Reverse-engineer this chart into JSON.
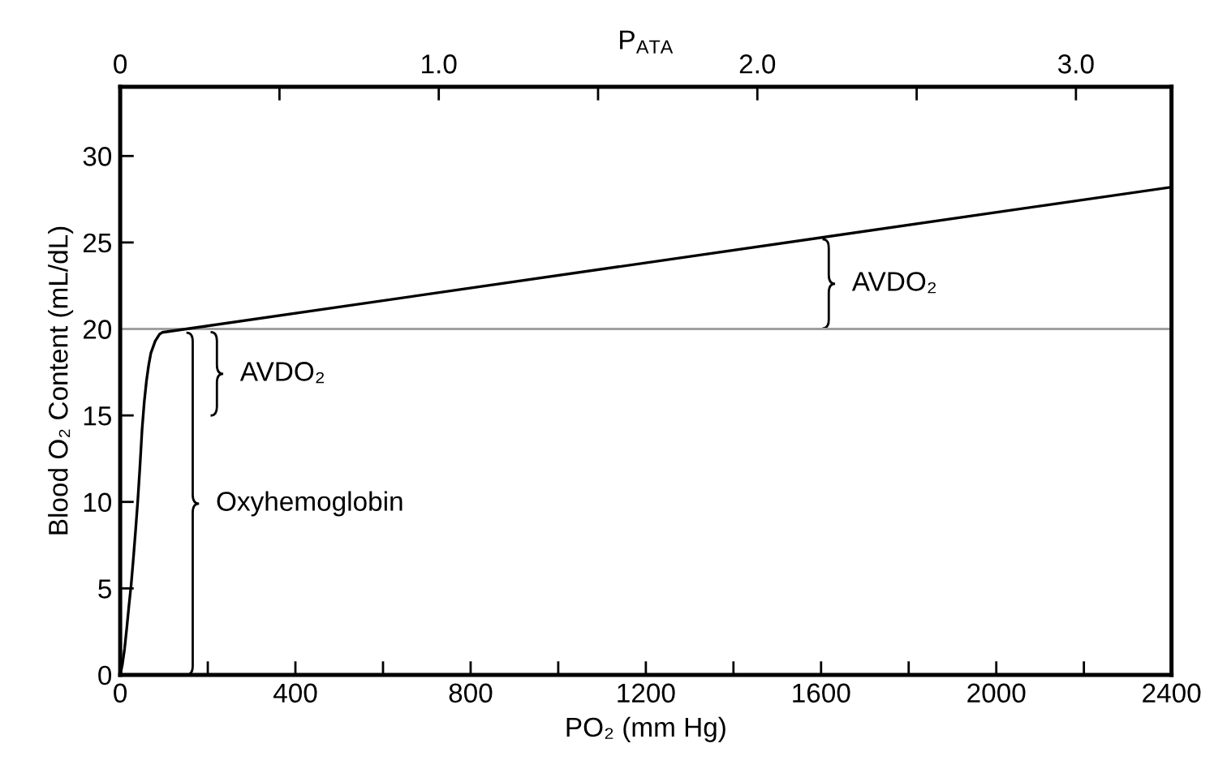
{
  "chart_data": {
    "type": "line",
    "xlabel": "PO₂ (mm Hg)",
    "ylabel": "Blood O₂ Content (mL/dL)",
    "x2label": "P$_{ATA}$",
    "series": [
      {
        "color": "#000000",
        "x": [
          0,
          5,
          10,
          15,
          20,
          25,
          30,
          35,
          40,
          45,
          50,
          55,
          60,
          65,
          70,
          80,
          90,
          96,
          2400
        ],
        "values": [
          0,
          0.6,
          1.5,
          2.7,
          4.0,
          5.2,
          6.7,
          8.3,
          10.0,
          12.0,
          14.2,
          15.8,
          17.0,
          17.9,
          18.6,
          19.3,
          19.7,
          19.8,
          28.2
        ]
      }
    ],
    "xlim": [
      0,
      2400
    ],
    "xticks": [
      0,
      {
        "value": 200,
        "label": null
      },
      400,
      {
        "value": 600,
        "label": null
      },
      800,
      {
        "value": 1000,
        "label": null
      },
      1200,
      {
        "value": 1400,
        "label": null
      },
      1600,
      {
        "value": 1800,
        "label": null
      },
      2000,
      {
        "value": 2200,
        "label": null
      },
      2400
    ],
    "x2lim": [
      0,
      3.3
    ],
    "x2ticks": [
      0,
      {
        "value": 0.5,
        "label": null
      },
      {
        "value": 1,
        "label": "1.0"
      },
      {
        "value": 1.5,
        "label": null
      },
      {
        "value": 2,
        "label": "2.0"
      },
      {
        "value": 2.5,
        "label": null
      },
      {
        "value": 3,
        "label": "3.0"
      }
    ],
    "ylim": [
      0,
      34
    ],
    "yticks": [
      0,
      5,
      10,
      15,
      20,
      25,
      30
    ],
    "ref_lines": [
      {
        "axis": "y",
        "value": 20,
        "color": "#a0a0a0"
      }
    ],
    "annotations": [
      "AVDO₂",
      "AVDO₂",
      "Oxyhemoglobin"
    ],
    "grid": false,
    "marker": "none",
    "line_style": "solid"
  }
}
